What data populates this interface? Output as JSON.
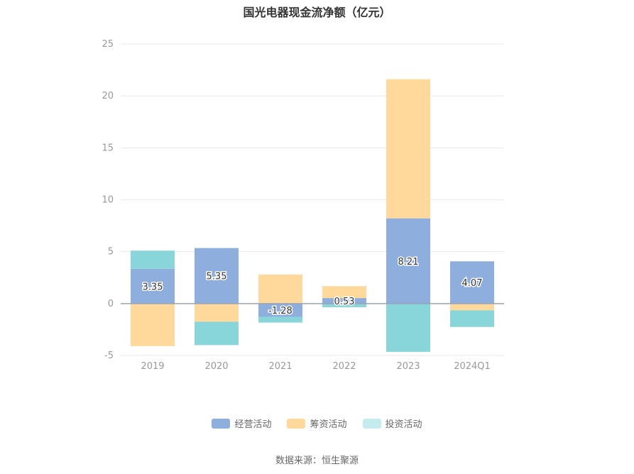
{
  "chart_data": {
    "type": "bar",
    "stacked": true,
    "title": "国光电器现金流净额（亿元）",
    "categories": [
      "2019",
      "2020",
      "2021",
      "2022",
      "2023",
      "2024Q1"
    ],
    "series": [
      {
        "name": "经营活动",
        "color": "#8eaede",
        "values": [
          3.35,
          5.35,
          -1.28,
          0.53,
          8.21,
          4.07
        ],
        "show_labels": true
      },
      {
        "name": "筹资活动",
        "color": "#ffd99b",
        "values": [
          -4.1,
          -1.75,
          2.8,
          1.15,
          13.4,
          -0.65
        ],
        "show_labels": false
      },
      {
        "name": "投资活动",
        "color": "#88d6da",
        "values": [
          1.75,
          -2.25,
          -0.55,
          -0.35,
          -4.65,
          -1.6
        ],
        "show_labels": false
      }
    ],
    "ylim": [
      -5,
      25
    ],
    "yticks": [
      -5,
      0,
      5,
      10,
      15,
      20,
      25
    ],
    "grid": true,
    "legend_position": "bottom"
  },
  "legend_colors": [
    "#8eaede",
    "#ffd99b",
    "#c4ecee"
  ],
  "source": "数据来源：恒生聚源"
}
